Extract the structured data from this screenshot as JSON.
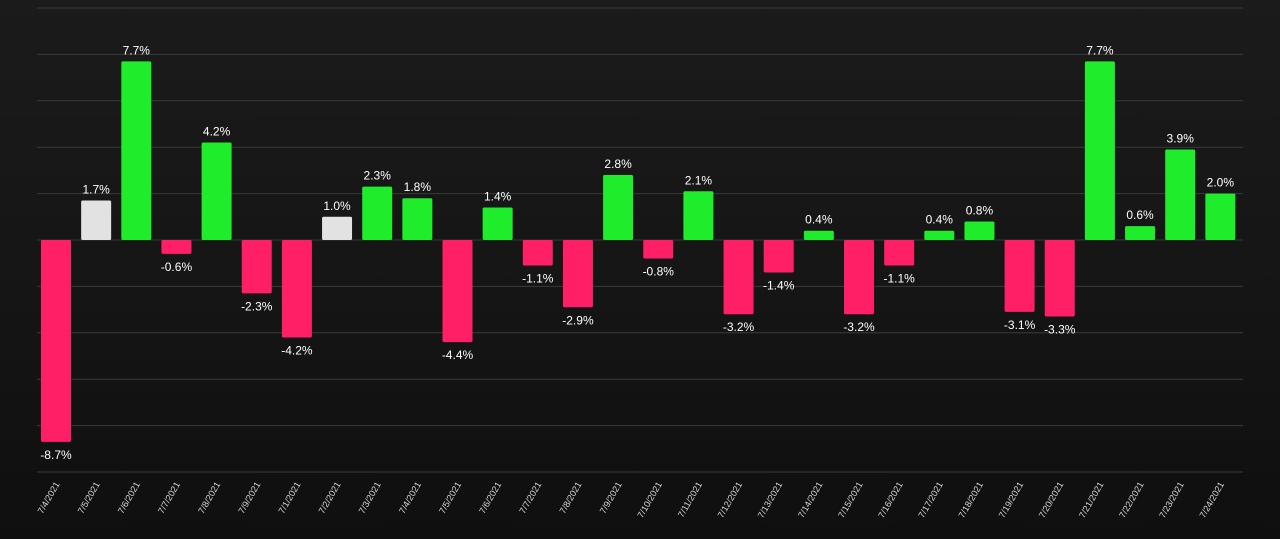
{
  "chart_data": {
    "type": "bar",
    "title": "",
    "xlabel": "",
    "ylabel": "",
    "ylim": [
      -10,
      10
    ],
    "grid": true,
    "categories": [
      "7/4/2021",
      "7/5/2021",
      "7/6/2021",
      "7/7/2021",
      "7/8/2021",
      "7/9/2021",
      "7/1/2021",
      "7/2/2021",
      "7/3/2021",
      "7/4/2021",
      "7/5/2021",
      "7/6/2021",
      "7/7/2021",
      "7/8/2021",
      "7/9/2021",
      "7/10/2021",
      "7/11/2021",
      "7/12/2021",
      "7/13/2021",
      "7/14/2021",
      "7/15/2021",
      "7/16/2021",
      "7/17/2021",
      "7/18/2021",
      "7/19/2021",
      "7/20/2021",
      "7/21/2021",
      "7/22/2021",
      "7/23/2021",
      "7/24/2021"
    ],
    "values": [
      -8.7,
      1.7,
      7.7,
      -0.6,
      4.2,
      -2.3,
      -4.2,
      1.0,
      2.3,
      1.8,
      -4.4,
      1.4,
      -1.1,
      -2.9,
      2.8,
      -0.8,
      2.1,
      -3.2,
      -1.4,
      0.4,
      -3.2,
      -1.1,
      0.4,
      0.8,
      -3.1,
      -3.3,
      7.7,
      0.6,
      3.9,
      2.0
    ],
    "value_labels": [
      "-8.7%",
      "1.7%",
      "7.7%",
      "-0.6%",
      "4.2%",
      "-2.3%",
      "-4.2%",
      "1.0%",
      "2.3%",
      "1.8%",
      "-4.4%",
      "1.4%",
      "-1.1%",
      "-2.9%",
      "2.8%",
      "-0.8%",
      "2.1%",
      "-3.2%",
      "-1.4%",
      "0.4%",
      "-3.2%",
      "-1.1%",
      "0.4%",
      "0.8%",
      "-3.1%",
      "-3.3%",
      "7.7%",
      "0.6%",
      "3.9%",
      "2.0%"
    ],
    "bar_colors": [
      "#ff1f66",
      "#e2e2e2",
      "#1fec2a",
      "#ff1f66",
      "#1fec2a",
      "#ff1f66",
      "#ff1f66",
      "#e2e2e2",
      "#1fec2a",
      "#1fec2a",
      "#ff1f66",
      "#1fec2a",
      "#ff1f66",
      "#ff1f66",
      "#1fec2a",
      "#ff1f66",
      "#1fec2a",
      "#ff1f66",
      "#ff1f66",
      "#1fec2a",
      "#ff1f66",
      "#ff1f66",
      "#1fec2a",
      "#1fec2a",
      "#ff1f66",
      "#ff1f66",
      "#1fec2a",
      "#1fec2a",
      "#1fec2a",
      "#1fec2a"
    ]
  },
  "colors": {
    "positive": "#1fec2a",
    "negative": "#ff1f66",
    "neutral": "#e2e2e2",
    "background": "#161616",
    "grid": "#3a3a3a",
    "text": "#ffffff"
  }
}
